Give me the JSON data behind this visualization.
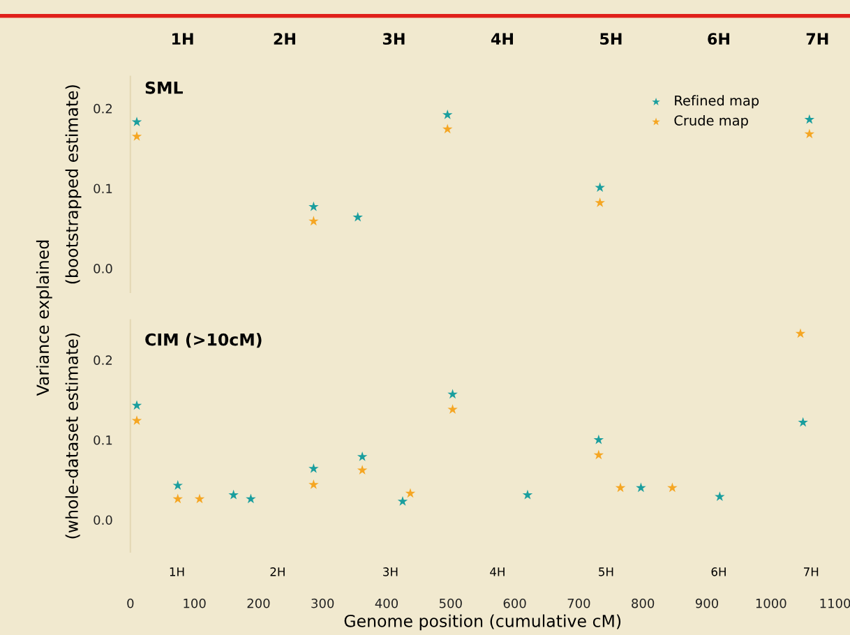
{
  "chart_data": [
    {
      "type": "scatter",
      "title": "SML",
      "ylabel": "(bootstrapped estimate)",
      "annotations": [
        "Variance explained",
        "1H",
        "2H",
        "3H",
        "4H",
        "5H",
        "6H",
        "7H"
      ],
      "xlim": [
        0,
        1100
      ],
      "ylim": [
        -0.03,
        0.24
      ],
      "yticks": [
        {
          "value": 0,
          "label": "0.0"
        },
        {
          "value": 0.1,
          "label": "0.1"
        },
        {
          "value": 0.2,
          "label": "0.2"
        }
      ],
      "marker": "star",
      "legend": "top right",
      "series": [
        {
          "name": "Refined map",
          "color": "#1a9e9e",
          "x": [
            10,
            286,
            355,
            495,
            733,
            1060
          ],
          "values": [
            0.183,
            0.077,
            0.064,
            0.192,
            0.101,
            0.186
          ]
        },
        {
          "name": "Crude map",
          "color": "#f5a623",
          "x": [
            10,
            286,
            495,
            733,
            1060
          ],
          "values": [
            0.165,
            0.059,
            0.174,
            0.082,
            0.168
          ]
        }
      ]
    },
    {
      "type": "scatter",
      "title": "CIM (>10cM)",
      "ylabel": "(whole-dataset estimate)",
      "xlabel": "Genome position (cumulative cM)",
      "annotations": [
        "1H",
        "2H",
        "3H",
        "4H",
        "5H",
        "6H",
        "7H"
      ],
      "xlim": [
        0,
        1100
      ],
      "xticks": [
        0,
        100,
        200,
        300,
        400,
        500,
        600,
        700,
        800,
        900,
        1000,
        1100
      ],
      "ylim": [
        -0.04,
        0.25
      ],
      "yticks": [
        {
          "value": 0,
          "label": "0.0"
        },
        {
          "value": 0.1,
          "label": "0.1"
        },
        {
          "value": 0.2,
          "label": "0.2"
        }
      ],
      "marker": "star",
      "series": [
        {
          "color": "#1a9e9e",
          "x": [
            10,
            74,
            161,
            188,
            286,
            362,
            425,
            503,
            620,
            731,
            797,
            920,
            1050
          ],
          "values": [
            0.143,
            0.043,
            0.031,
            0.026,
            0.064,
            0.079,
            0.023,
            0.157,
            0.031,
            0.1,
            0.04,
            0.029,
            0.122
          ]
        },
        {
          "color": "#f5a623",
          "x": [
            10,
            74,
            108,
            286,
            362,
            437,
            503,
            731,
            765,
            846,
            1046
          ],
          "values": [
            0.124,
            0.026,
            0.026,
            0.044,
            0.062,
            0.033,
            0.138,
            0.081,
            0.04,
            0.04,
            0.233
          ]
        }
      ]
    }
  ]
}
